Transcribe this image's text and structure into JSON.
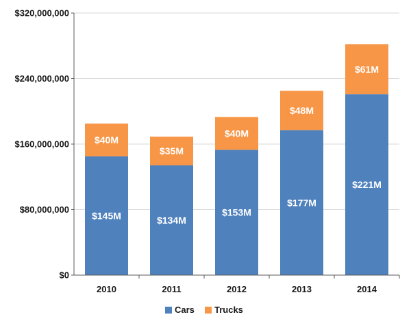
{
  "chart_data": {
    "type": "bar",
    "stacked": true,
    "categories": [
      "2010",
      "2011",
      "2012",
      "2013",
      "2014"
    ],
    "series": [
      {
        "name": "Cars",
        "color": "#4F81BD",
        "values": [
          145000000,
          134000000,
          153000000,
          177000000,
          221000000
        ],
        "labels": [
          "$145M",
          "$134M",
          "$153M",
          "$177M",
          "$221M"
        ]
      },
      {
        "name": "Trucks",
        "color": "#F79646",
        "values": [
          40000000,
          35000000,
          40000000,
          48000000,
          61000000
        ],
        "labels": [
          "$40M",
          "$35M",
          "$40M",
          "$48M",
          "$61M"
        ]
      }
    ],
    "ylim": [
      0,
      320000000
    ],
    "yticks": [
      0,
      80000000,
      160000000,
      240000000,
      320000000
    ],
    "ytick_labels": [
      "$0",
      "$80,000,000",
      "$160,000,000",
      "$240,000,000",
      "$320,000,000"
    ],
    "grid": true,
    "legend_position": "bottom",
    "title": "",
    "xlabel": "",
    "ylabel": ""
  }
}
